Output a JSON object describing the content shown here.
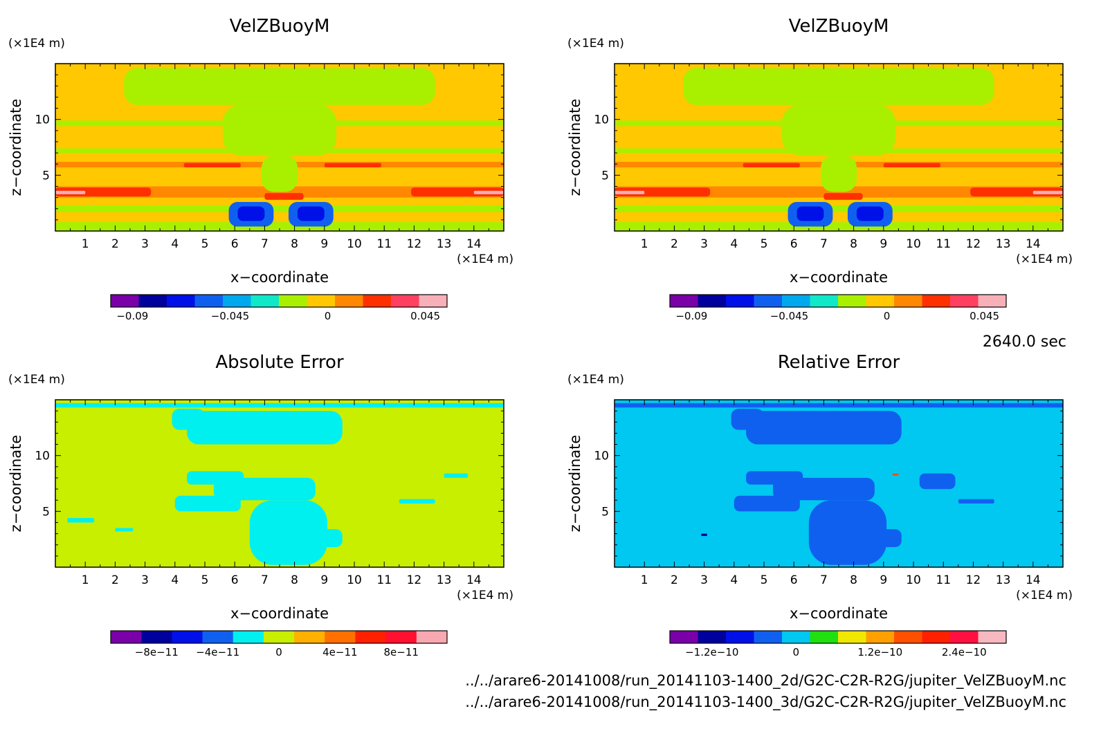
{
  "time_label": "2640.0 sec",
  "file_paths": [
    "../../arare6-20141008/run_20141103-1400_2d/G2C-C2R-R2G/jupiter_VelZBuoyM.nc",
    "../../arare6-20141008/run_20141103-1400_3d/G2C-C2R-R2G/jupiter_VelZBuoyM.nc"
  ],
  "colorbar_colors": {
    "velocity": [
      "#7a00a8",
      "#00009c",
      "#0010e8",
      "#1060f0",
      "#00a8ee",
      "#10e8c8",
      "#a8f000",
      "#ffc800",
      "#ff8800",
      "#ff3000",
      "#ff4060",
      "#f8b0b8"
    ],
    "abs_error": [
      "#7a00a8",
      "#00009c",
      "#0010e8",
      "#1060f0",
      "#00f0f0",
      "#c8ee00",
      "#ffb000",
      "#ff7000",
      "#ff2000",
      "#ff1030",
      "#f8a8b0"
    ],
    "rel_error": [
      "#7a00a8",
      "#00009c",
      "#0010e8",
      "#1060f0",
      "#00c8f0",
      "#20e010",
      "#f0e800",
      "#ffa000",
      "#ff5000",
      "#ff2000",
      "#ff1040",
      "#f8b8c0"
    ]
  },
  "chart_data": [
    {
      "type": "heatmap",
      "title": "VelZBuoyM",
      "xlabel": "x−coordinate",
      "ylabel": "z−coordinate",
      "x_unit": "(×1E4 m)",
      "y_unit": "(×1E4 m)",
      "xlim": [
        0,
        15
      ],
      "ylim": [
        0,
        15
      ],
      "x_ticks": [
        "1",
        "2",
        "3",
        "4",
        "5",
        "6",
        "7",
        "8",
        "9",
        "10",
        "11",
        "12",
        "13",
        "14"
      ],
      "y_ticks": [
        "5",
        "10"
      ],
      "colorbar": {
        "min": -0.1,
        "max": 0.055,
        "tick_values": [
          -0.09,
          -0.045,
          0,
          0.045
        ],
        "tick_labels": [
          "−0.09",
          "−0.045",
          "0",
          "0.045"
        ]
      },
      "background_color": "#ffc800",
      "regions": [
        {
          "color": "#ffc800",
          "x": [
            0,
            15
          ],
          "z": [
            0,
            15
          ]
        },
        {
          "color": "#a8f000",
          "x": [
            0,
            15
          ],
          "z": [
            9.4,
            9.9
          ]
        },
        {
          "color": "#a8f000",
          "x": [
            0,
            15
          ],
          "z": [
            7.0,
            7.4
          ]
        },
        {
          "color": "#ff8800",
          "x": [
            0,
            15
          ],
          "z": [
            5.7,
            6.2
          ]
        },
        {
          "color": "#ff8800",
          "x": [
            0,
            15
          ],
          "z": [
            3.0,
            4.0
          ]
        },
        {
          "color": "#ff3000",
          "x": [
            0,
            3.2
          ],
          "z": [
            3.1,
            3.9
          ]
        },
        {
          "color": "#ff3000",
          "x": [
            11.9,
            15
          ],
          "z": [
            3.1,
            3.9
          ]
        },
        {
          "color": "#f8b0b8",
          "x": [
            0,
            1.0
          ],
          "z": [
            3.3,
            3.6
          ]
        },
        {
          "color": "#f8b0b8",
          "x": [
            14.0,
            15
          ],
          "z": [
            3.3,
            3.6
          ]
        },
        {
          "color": "#ff3000",
          "x": [
            4.3,
            6.2
          ],
          "z": [
            5.7,
            6.1
          ]
        },
        {
          "color": "#ff3000",
          "x": [
            9.0,
            10.9
          ],
          "z": [
            5.7,
            6.1
          ]
        },
        {
          "color": "#a8f000",
          "x": [
            0,
            15
          ],
          "z": [
            1.7,
            2.3
          ]
        },
        {
          "color": "#a8f000",
          "x": [
            0,
            15
          ],
          "z": [
            0,
            0.8
          ]
        },
        {
          "color": "#a8f000",
          "x": [
            2.3,
            12.7
          ],
          "z": [
            11.3,
            14.6
          ]
        },
        {
          "color": "#a8f000",
          "x": [
            5.6,
            9.4
          ],
          "z": [
            6.8,
            11.3
          ]
        },
        {
          "color": "#a8f000",
          "x": [
            6.9,
            8.1
          ],
          "z": [
            3.5,
            6.8
          ]
        },
        {
          "color": "#ff3000",
          "x": [
            7.0,
            8.3
          ],
          "z": [
            2.8,
            3.4
          ]
        },
        {
          "color": "#1060f0",
          "x": [
            5.8,
            7.3
          ],
          "z": [
            0.4,
            2.6
          ]
        },
        {
          "color": "#1060f0",
          "x": [
            7.8,
            9.3
          ],
          "z": [
            0.4,
            2.6
          ]
        },
        {
          "color": "#0010e8",
          "x": [
            6.1,
            7.0
          ],
          "z": [
            0.9,
            2.2
          ]
        },
        {
          "color": "#0010e8",
          "x": [
            8.1,
            9.0
          ],
          "z": [
            0.9,
            2.2
          ]
        }
      ]
    },
    {
      "type": "heatmap",
      "title": "VelZBuoyM",
      "xlabel": "x−coordinate",
      "ylabel": "z−coordinate",
      "x_unit": "(×1E4 m)",
      "y_unit": "(×1E4 m)",
      "xlim": [
        0,
        15
      ],
      "ylim": [
        0,
        15
      ],
      "x_ticks": [
        "1",
        "2",
        "3",
        "4",
        "5",
        "6",
        "7",
        "8",
        "9",
        "10",
        "11",
        "12",
        "13",
        "14"
      ],
      "y_ticks": [
        "5",
        "10"
      ],
      "colorbar": {
        "min": -0.1,
        "max": 0.055,
        "tick_values": [
          -0.09,
          -0.045,
          0,
          0.045
        ],
        "tick_labels": [
          "−0.09",
          "−0.045",
          "0",
          "0.045"
        ]
      },
      "background_color": "#ffc800",
      "regions": [
        {
          "color": "#ffc800",
          "x": [
            0,
            15
          ],
          "z": [
            0,
            15
          ]
        },
        {
          "color": "#a8f000",
          "x": [
            0,
            15
          ],
          "z": [
            9.4,
            9.9
          ]
        },
        {
          "color": "#a8f000",
          "x": [
            0,
            15
          ],
          "z": [
            7.0,
            7.4
          ]
        },
        {
          "color": "#ff8800",
          "x": [
            0,
            15
          ],
          "z": [
            5.7,
            6.2
          ]
        },
        {
          "color": "#ff8800",
          "x": [
            0,
            15
          ],
          "z": [
            3.0,
            4.0
          ]
        },
        {
          "color": "#ff3000",
          "x": [
            0,
            3.2
          ],
          "z": [
            3.1,
            3.9
          ]
        },
        {
          "color": "#ff3000",
          "x": [
            11.9,
            15
          ],
          "z": [
            3.1,
            3.9
          ]
        },
        {
          "color": "#f8b0b8",
          "x": [
            0,
            1.0
          ],
          "z": [
            3.3,
            3.6
          ]
        },
        {
          "color": "#f8b0b8",
          "x": [
            14.0,
            15
          ],
          "z": [
            3.3,
            3.6
          ]
        },
        {
          "color": "#ff3000",
          "x": [
            4.3,
            6.2
          ],
          "z": [
            5.7,
            6.1
          ]
        },
        {
          "color": "#ff3000",
          "x": [
            9.0,
            10.9
          ],
          "z": [
            5.7,
            6.1
          ]
        },
        {
          "color": "#a8f000",
          "x": [
            0,
            15
          ],
          "z": [
            1.7,
            2.3
          ]
        },
        {
          "color": "#a8f000",
          "x": [
            0,
            15
          ],
          "z": [
            0,
            0.8
          ]
        },
        {
          "color": "#a8f000",
          "x": [
            2.3,
            12.7
          ],
          "z": [
            11.3,
            14.6
          ]
        },
        {
          "color": "#a8f000",
          "x": [
            5.6,
            9.4
          ],
          "z": [
            6.8,
            11.3
          ]
        },
        {
          "color": "#a8f000",
          "x": [
            6.9,
            8.1
          ],
          "z": [
            3.5,
            6.8
          ]
        },
        {
          "color": "#ff3000",
          "x": [
            7.0,
            8.3
          ],
          "z": [
            2.8,
            3.4
          ]
        },
        {
          "color": "#1060f0",
          "x": [
            5.8,
            7.3
          ],
          "z": [
            0.4,
            2.6
          ]
        },
        {
          "color": "#1060f0",
          "x": [
            7.8,
            9.3
          ],
          "z": [
            0.4,
            2.6
          ]
        },
        {
          "color": "#0010e8",
          "x": [
            6.1,
            7.0
          ],
          "z": [
            0.9,
            2.2
          ]
        },
        {
          "color": "#0010e8",
          "x": [
            8.1,
            9.0
          ],
          "z": [
            0.9,
            2.2
          ]
        }
      ]
    },
    {
      "type": "heatmap",
      "title": "Absolute Error",
      "xlabel": "x−coordinate",
      "ylabel": "z−coordinate",
      "x_unit": "(×1E4 m)",
      "y_unit": "(×1E4 m)",
      "xlim": [
        0,
        15
      ],
      "ylim": [
        0,
        15
      ],
      "x_ticks": [
        "1",
        "2",
        "3",
        "4",
        "5",
        "6",
        "7",
        "8",
        "9",
        "10",
        "11",
        "12",
        "13",
        "14"
      ],
      "y_ticks": [
        "5",
        "10"
      ],
      "colorbar": {
        "min": -1.1e-10,
        "max": 1.1e-10,
        "tick_values": [
          -8e-11,
          -4e-11,
          0,
          4e-11,
          8e-11
        ],
        "tick_labels": [
          "−8e−11",
          "−4e−11",
          "0",
          "4e−11",
          "8e−11"
        ]
      },
      "background_color": "#c8ee00",
      "regions": [
        {
          "color": "#00f0f0",
          "x": [
            3.9,
            5.0
          ],
          "z": [
            12.3,
            14.2
          ]
        },
        {
          "color": "#00f0f0",
          "x": [
            4.4,
            9.6
          ],
          "z": [
            11.0,
            14.0
          ]
        },
        {
          "color": "#00f0f0",
          "x": [
            4.4,
            6.3
          ],
          "z": [
            7.4,
            8.6
          ]
        },
        {
          "color": "#00f0f0",
          "x": [
            5.3,
            8.7
          ],
          "z": [
            6.0,
            8.0
          ]
        },
        {
          "color": "#00f0f0",
          "x": [
            6.5,
            9.1
          ],
          "z": [
            0.2,
            6.0
          ]
        },
        {
          "color": "#00f0f0",
          "x": [
            4.0,
            6.2
          ],
          "z": [
            5.0,
            6.4
          ]
        },
        {
          "color": "#00f0f0",
          "x": [
            8.6,
            9.6
          ],
          "z": [
            1.8,
            3.4
          ]
        },
        {
          "color": "#00f0f0",
          "x": [
            0,
            15
          ],
          "z": [
            14.3,
            14.7
          ]
        },
        {
          "color": "#00f0f0",
          "x": [
            0.4,
            1.3
          ],
          "z": [
            4.0,
            4.4
          ]
        },
        {
          "color": "#00f0f0",
          "x": [
            2.0,
            2.6
          ],
          "z": [
            3.2,
            3.5
          ]
        },
        {
          "color": "#00f0f0",
          "x": [
            11.5,
            12.7
          ],
          "z": [
            5.7,
            6.1
          ]
        },
        {
          "color": "#00f0f0",
          "x": [
            13.0,
            13.8
          ],
          "z": [
            8.0,
            8.4
          ]
        }
      ]
    },
    {
      "type": "heatmap",
      "title": "Relative Error",
      "xlabel": "x−coordinate",
      "ylabel": "z−coordinate",
      "x_unit": "(×1E4 m)",
      "y_unit": "(×1E4 m)",
      "xlim": [
        0,
        15
      ],
      "ylim": [
        0,
        15
      ],
      "x_ticks": [
        "1",
        "2",
        "3",
        "4",
        "5",
        "6",
        "7",
        "8",
        "9",
        "10",
        "11",
        "12",
        "13",
        "14"
      ],
      "y_ticks": [
        "5",
        "10"
      ],
      "colorbar": {
        "min": -1.8e-10,
        "max": 3e-10,
        "tick_values": [
          -1.2e-10,
          0,
          1.2e-10,
          2.4e-10
        ],
        "tick_labels": [
          "−1.2e−10",
          "0",
          "1.2e−10",
          "2.4e−10"
        ]
      },
      "background_color": "#00c8f0",
      "regions": [
        {
          "color": "#1060f0",
          "x": [
            3.9,
            5.0
          ],
          "z": [
            12.3,
            14.2
          ]
        },
        {
          "color": "#1060f0",
          "x": [
            4.4,
            9.6
          ],
          "z": [
            11.0,
            14.0
          ]
        },
        {
          "color": "#1060f0",
          "x": [
            4.4,
            6.3
          ],
          "z": [
            7.4,
            8.6
          ]
        },
        {
          "color": "#1060f0",
          "x": [
            5.3,
            8.7
          ],
          "z": [
            6.0,
            8.0
          ]
        },
        {
          "color": "#1060f0",
          "x": [
            6.5,
            9.1
          ],
          "z": [
            0.2,
            6.0
          ]
        },
        {
          "color": "#1060f0",
          "x": [
            4.0,
            6.2
          ],
          "z": [
            5.0,
            6.4
          ]
        },
        {
          "color": "#1060f0",
          "x": [
            8.6,
            9.6
          ],
          "z": [
            1.8,
            3.4
          ]
        },
        {
          "color": "#1060f0",
          "x": [
            0,
            15
          ],
          "z": [
            14.3,
            14.7
          ]
        },
        {
          "color": "#1060f0",
          "x": [
            10.2,
            11.4
          ],
          "z": [
            7.0,
            8.4
          ]
        },
        {
          "color": "#1060f0",
          "x": [
            11.5,
            12.7
          ],
          "z": [
            5.7,
            6.1
          ]
        },
        {
          "color": "#00009c",
          "x": [
            2.9,
            3.1
          ],
          "z": [
            2.8,
            3.0
          ]
        },
        {
          "color": "#ff5000",
          "x": [
            9.3,
            9.5
          ],
          "z": [
            8.2,
            8.4
          ]
        }
      ]
    }
  ]
}
